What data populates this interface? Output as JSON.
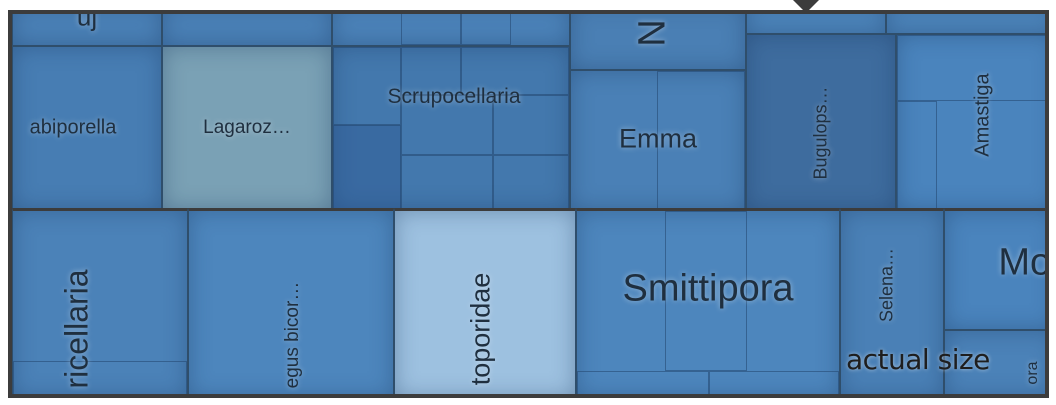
{
  "treemap": {
    "tiles": {
      "top_a": "uj",
      "top_b": "",
      "top_n": "N",
      "abiporella": "abiporella",
      "lagaroz": "Lagaroz…",
      "scrupocellaria": "Scrupocellaria",
      "emma": "Emma",
      "bugulops": "Bugulops…",
      "amastiga": "Amastiga",
      "ricellaria": "ricellaria",
      "egus": "egus bicor…",
      "toporidae": "toporidae",
      "smittipora": "Smittipora",
      "selena": "Selena…",
      "mol": "Mol",
      "ora": "ora"
    },
    "colors": {
      "base": "#4a7fb4",
      "dark": "#3e6c9e",
      "light": "#9cc0df",
      "grey_teal": "#7ea4b6",
      "frame": "#3c3c3c"
    }
  },
  "zoom_label": "actual size"
}
